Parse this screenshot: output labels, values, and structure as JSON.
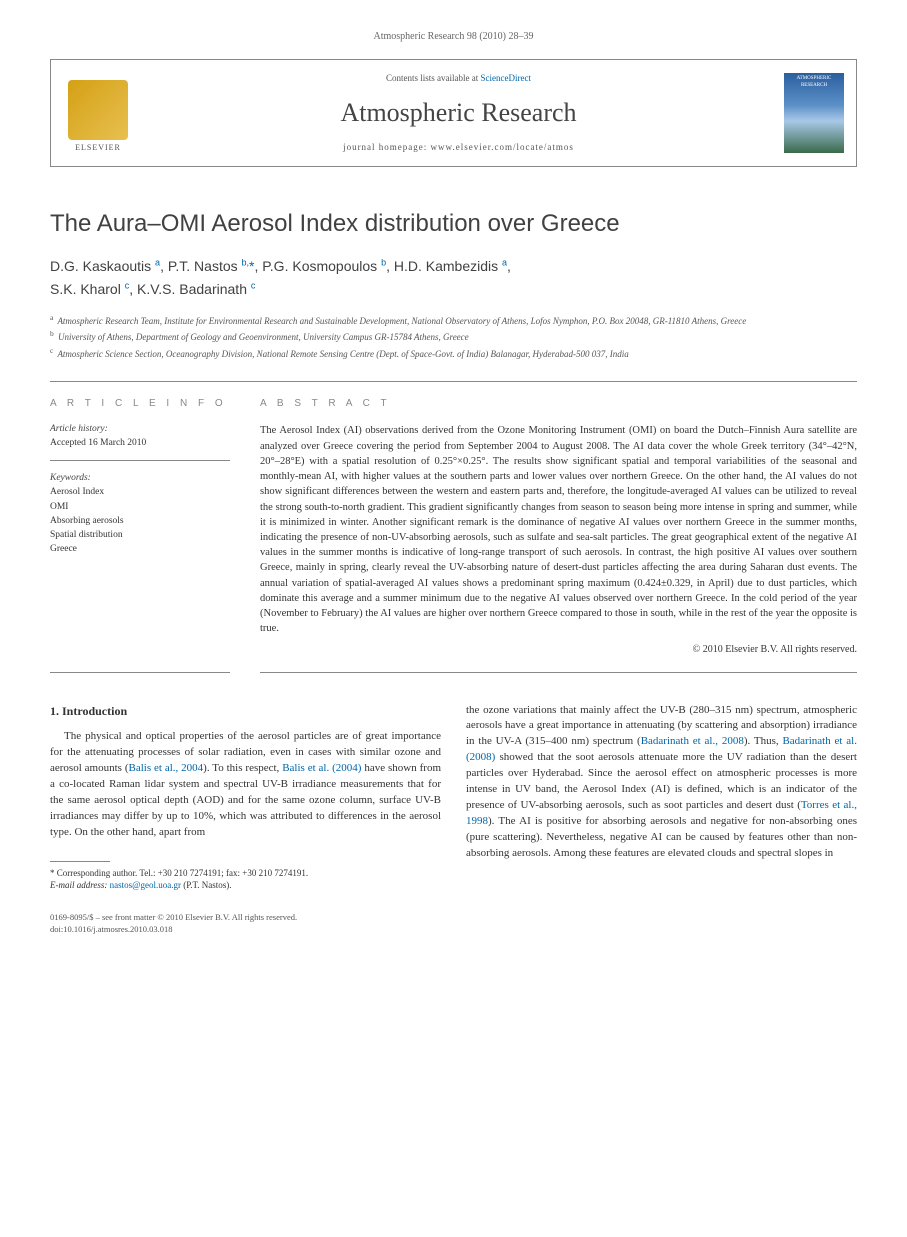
{
  "running_header": "Atmospheric Research 98 (2010) 28–39",
  "masthead": {
    "publisher": "ELSEVIER",
    "contents_prefix": "Contents lists available at ",
    "contents_link": "ScienceDirect",
    "journal": "Atmospheric Research",
    "homepage_prefix": "journal homepage: ",
    "homepage_url": "www.elsevier.com/locate/atmos",
    "cover_text": "ATMOSPHERIC RESEARCH"
  },
  "title": "The Aura–OMI Aerosol Index distribution over Greece",
  "authors_html": "D.G. Kaskaoutis <sup>a</sup>, P.T. Nastos <sup>b,</sup><span class='star'>*</span>, P.G. Kosmopoulos <sup>b</sup>, H.D. Kambezidis <sup>a</sup>,<br>S.K. Kharol <sup>c</sup>, K.V.S. Badarinath <sup>c</sup>",
  "affiliations": {
    "a": "Atmospheric Research Team, Institute for Environmental Research and Sustainable Development, National Observatory of Athens, Lofos Nymphon, P.O. Box 20048, GR-11810 Athens, Greece",
    "b": "University of Athens, Department of Geology and Geoenvironment, University Campus GR-15784 Athens, Greece",
    "c": "Atmospheric Science Section, Oceanography Division, National Remote Sensing Centre (Dept. of Space-Govt. of India) Balanagar, Hyderabad-500 037, India"
  },
  "info": {
    "heading": "A R T I C L E   I N F O",
    "history_label": "Article history:",
    "history_value": "Accepted 16 March 2010",
    "keywords_label": "Keywords:",
    "keywords": [
      "Aerosol Index",
      "OMI",
      "Absorbing aerosols",
      "Spatial distribution",
      "Greece"
    ]
  },
  "abstract": {
    "heading": "A B S T R A C T",
    "text": "The Aerosol Index (AI) observations derived from the Ozone Monitoring Instrument (OMI) on board the Dutch–Finnish Aura satellite are analyzed over Greece covering the period from September 2004 to August 2008. The AI data cover the whole Greek territory (34°–42°N, 20°–28°E) with a spatial resolution of 0.25°×0.25°. The results show significant spatial and temporal variabilities of the seasonal and monthly-mean AI, with higher values at the southern parts and lower values over northern Greece. On the other hand, the AI values do not show significant differences between the western and eastern parts and, therefore, the longitude-averaged AI values can be utilized to reveal the strong south-to-north gradient. This gradient significantly changes from season to season being more intense in spring and summer, while it is minimized in winter. Another significant remark is the dominance of negative AI values over northern Greece in the summer months, indicating the presence of non-UV-absorbing aerosols, such as sulfate and sea-salt particles. The great geographical extent of the negative AI values in the summer months is indicative of long-range transport of such aerosols. In contrast, the high positive AI values over southern Greece, mainly in spring, clearly reveal the UV-absorbing nature of desert-dust particles affecting the area during Saharan dust events. The annual variation of spatial-averaged AI values shows a predominant spring maximum (0.424±0.329, in April) due to dust particles, which dominate this average and a summer minimum due to the negative AI values observed over northern Greece. In the cold period of the year (November to February) the AI values are higher over northern Greece compared to those in south, while in the rest of the year the opposite is true.",
    "copyright": "© 2010 Elsevier B.V. All rights reserved."
  },
  "body": {
    "section1_heading": "1. Introduction",
    "col1_para": "The physical and optical properties of the aerosol particles are of great importance for the attenuating processes of solar radiation, even in cases with similar ozone and aerosol amounts (<span class='cite'>Balis et al., 2004</span>). To this respect, <span class='cite'>Balis et al. (2004)</span> have shown from a co-located Raman lidar system and spectral UV-B irradiance measurements that for the same aerosol optical depth (AOD) and for the same ozone column, surface UV-B irradiances may differ by up to 10%, which was attributed to differences in the aerosol type. On the other hand, apart from",
    "col2_para": "the ozone variations that mainly affect the UV-B (280–315 nm) spectrum, atmospheric aerosols have a great importance in attenuating (by scattering and absorption) irradiance in the UV-A (315–400 nm) spectrum (<span class='cite'>Badarinath et al., 2008</span>). Thus, <span class='cite'>Badarinath et al. (2008)</span> showed that the soot aerosols attenuate more the UV radiation than the desert particles over Hyderabad. Since the aerosol effect on atmospheric processes is more intense in UV band, the Aerosol Index (AI) is defined, which is an indicator of the presence of UV-absorbing aerosols, such as soot particles and desert dust (<span class='cite'>Torres et al., 1998</span>). The AI is positive for absorbing aerosols and negative for non-absorbing ones (pure scattering). Nevertheless, negative AI can be caused by features other than non-absorbing aerosols. Among these features are elevated clouds and spectral slopes in"
  },
  "footnote": {
    "corresponding": "* Corresponding author. Tel.: +30 210 7274191; fax: +30 210 7274191.",
    "email_label": "E-mail address:",
    "email": "nastos@geol.uoa.gr",
    "email_attrib": "(P.T. Nastos)."
  },
  "footer": {
    "line1": "0169-8095/$ – see front matter © 2010 Elsevier B.V. All rights reserved.",
    "line2": "doi:10.1016/j.atmosres.2010.03.018"
  },
  "colors": {
    "link": "#0066aa",
    "text": "#333333",
    "muted": "#555555",
    "rule": "#888888"
  }
}
